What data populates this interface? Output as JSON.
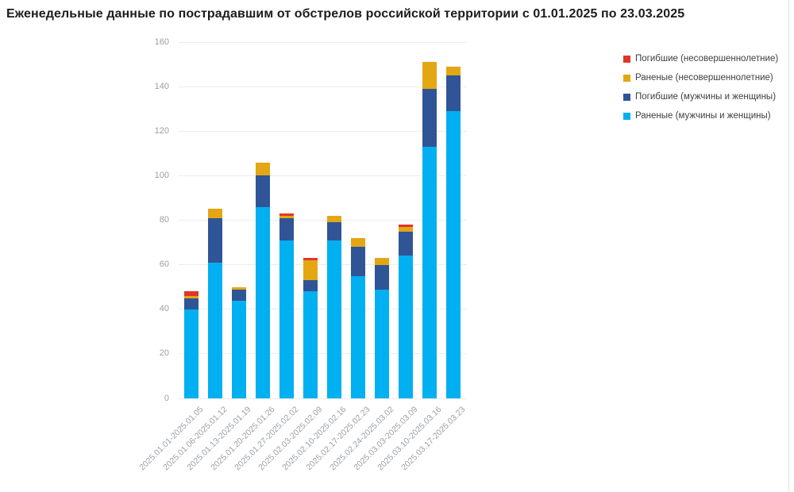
{
  "page": {
    "background": "#ffffff",
    "accent_colors": [
      "#e1352a",
      "#e2a713",
      "#2f5597",
      "#00b0f0"
    ]
  },
  "title": "Еженедельные данные по пострадавшим от обстрелов российской территории с 01.01.2025 по 23.03.2025",
  "legend": {
    "position": "top-right",
    "items": [
      {
        "label": "Погибшие (несовершеннолетние)",
        "color": "#e1352a"
      },
      {
        "label": "Раненые (несовершеннолетние)",
        "color": "#e2a713"
      },
      {
        "label": "Погибшие (мужчины и женщины)",
        "color": "#2f5597"
      },
      {
        "label": "Раненые (мужчины и женщины)",
        "color": "#00b0f0"
      }
    ]
  },
  "chart_data": {
    "type": "bar",
    "stacked": true,
    "title": "Еженедельные данные по пострадавшим от обстрелов российской территории с 01.01.2025 по 23.03.2025",
    "categories": [
      "2025.01.01-2025.01.05",
      "2025.01.06-2025.01.12",
      "2025.01.13-2025.01.19",
      "2025.01.20-2025.01.26",
      "2025.01.27-2025.02.02",
      "2025.02.03-2025.02.09",
      "2025.02.10-2025.02.16",
      "2025.02.17-2025.02.23",
      "2025.02.24-2025.03.02",
      "2025.03.03-2025.03.09",
      "2025.03.10-2025.03.16",
      "2025.03.17-2025.03.23"
    ],
    "series": [
      {
        "name": "Раненые (мужчины и женщины)",
        "color": "#00b0f0",
        "values": [
          40,
          61,
          44,
          86,
          71,
          48,
          71,
          55,
          49,
          64,
          113,
          129
        ]
      },
      {
        "name": "Погибшие (мужчины и женщины)",
        "color": "#2f5597",
        "values": [
          5,
          20,
          5,
          14,
          10,
          5,
          8,
          13,
          11,
          11,
          26,
          16
        ]
      },
      {
        "name": "Раненые (несовершеннолетние)",
        "color": "#e2a713",
        "values": [
          1,
          4,
          1,
          6,
          1,
          9,
          3,
          4,
          3,
          2,
          12,
          4
        ]
      },
      {
        "name": "Погибшие (несовершеннолетние)",
        "color": "#e1352a",
        "values": [
          2,
          0,
          0,
          0,
          1,
          1,
          0,
          0,
          0,
          1,
          0,
          0
        ]
      }
    ],
    "totals": [
      48,
      85,
      50,
      106,
      83,
      63,
      82,
      72,
      63,
      78,
      151,
      149
    ],
    "xlabel": "",
    "ylabel": "",
    "ylim": [
      0,
      160
    ],
    "yticks": [
      0,
      20,
      40,
      60,
      80,
      100,
      120,
      140,
      160
    ],
    "grid": "horizontal",
    "legend_position": "top-right",
    "x_tick_rotation_deg": 45,
    "stack_order_bottom_to_top": [
      "Раненые (мужчины и женщины)",
      "Погибшие (мужчины и женщины)",
      "Раненые (несовершеннолетние)",
      "Погибшие (несовершеннолетние)"
    ]
  }
}
